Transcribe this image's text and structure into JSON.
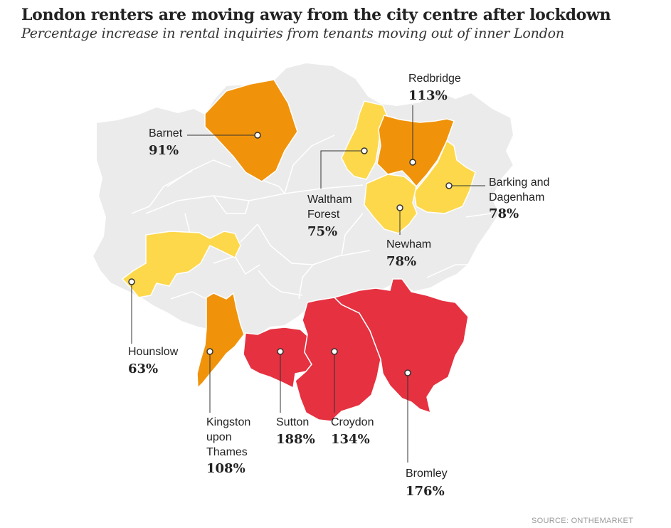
{
  "title": "London renters are moving away from the city centre after lockdown",
  "subtitle": "Percentage increase in rental inquiries from tenants moving out of inner London",
  "source": "SOURCE: ONTHEMARKET",
  "colors": {
    "background_borough": "#ebebeb",
    "borough_border": "#ffffff",
    "low": "#fdd84b",
    "mid": "#f0930a",
    "high": "#e53140",
    "leader": "#333333"
  },
  "boroughs": [
    {
      "id": "barnet",
      "name_lines": [
        "Barnet"
      ],
      "value": "91%",
      "value_pct": 91,
      "tier": "mid"
    },
    {
      "id": "redbridge",
      "name_lines": [
        "Redbridge"
      ],
      "value": "113%",
      "value_pct": 113,
      "tier": "mid"
    },
    {
      "id": "waltham-forest",
      "name_lines": [
        "Waltham",
        "Forest"
      ],
      "value": "75%",
      "value_pct": 75,
      "tier": "low"
    },
    {
      "id": "barking-and-dagenham",
      "name_lines": [
        "Barking and",
        "Dagenham"
      ],
      "value": "78%",
      "value_pct": 78,
      "tier": "low"
    },
    {
      "id": "newham",
      "name_lines": [
        "Newham"
      ],
      "value": "78%",
      "value_pct": 78,
      "tier": "low"
    },
    {
      "id": "hounslow",
      "name_lines": [
        "Hounslow"
      ],
      "value": "63%",
      "value_pct": 63,
      "tier": "low"
    },
    {
      "id": "kingston-upon-thames",
      "name_lines": [
        "Kingston",
        "upon",
        "Thames"
      ],
      "value": "108%",
      "value_pct": 108,
      "tier": "mid"
    },
    {
      "id": "sutton",
      "name_lines": [
        "Sutton"
      ],
      "value": "188%",
      "value_pct": 188,
      "tier": "high"
    },
    {
      "id": "croydon",
      "name_lines": [
        "Croydon"
      ],
      "value": "134%",
      "value_pct": 134,
      "tier": "high"
    },
    {
      "id": "bromley",
      "name_lines": [
        "Bromley"
      ],
      "value": "176%",
      "value_pct": 176,
      "tier": "high"
    }
  ]
}
